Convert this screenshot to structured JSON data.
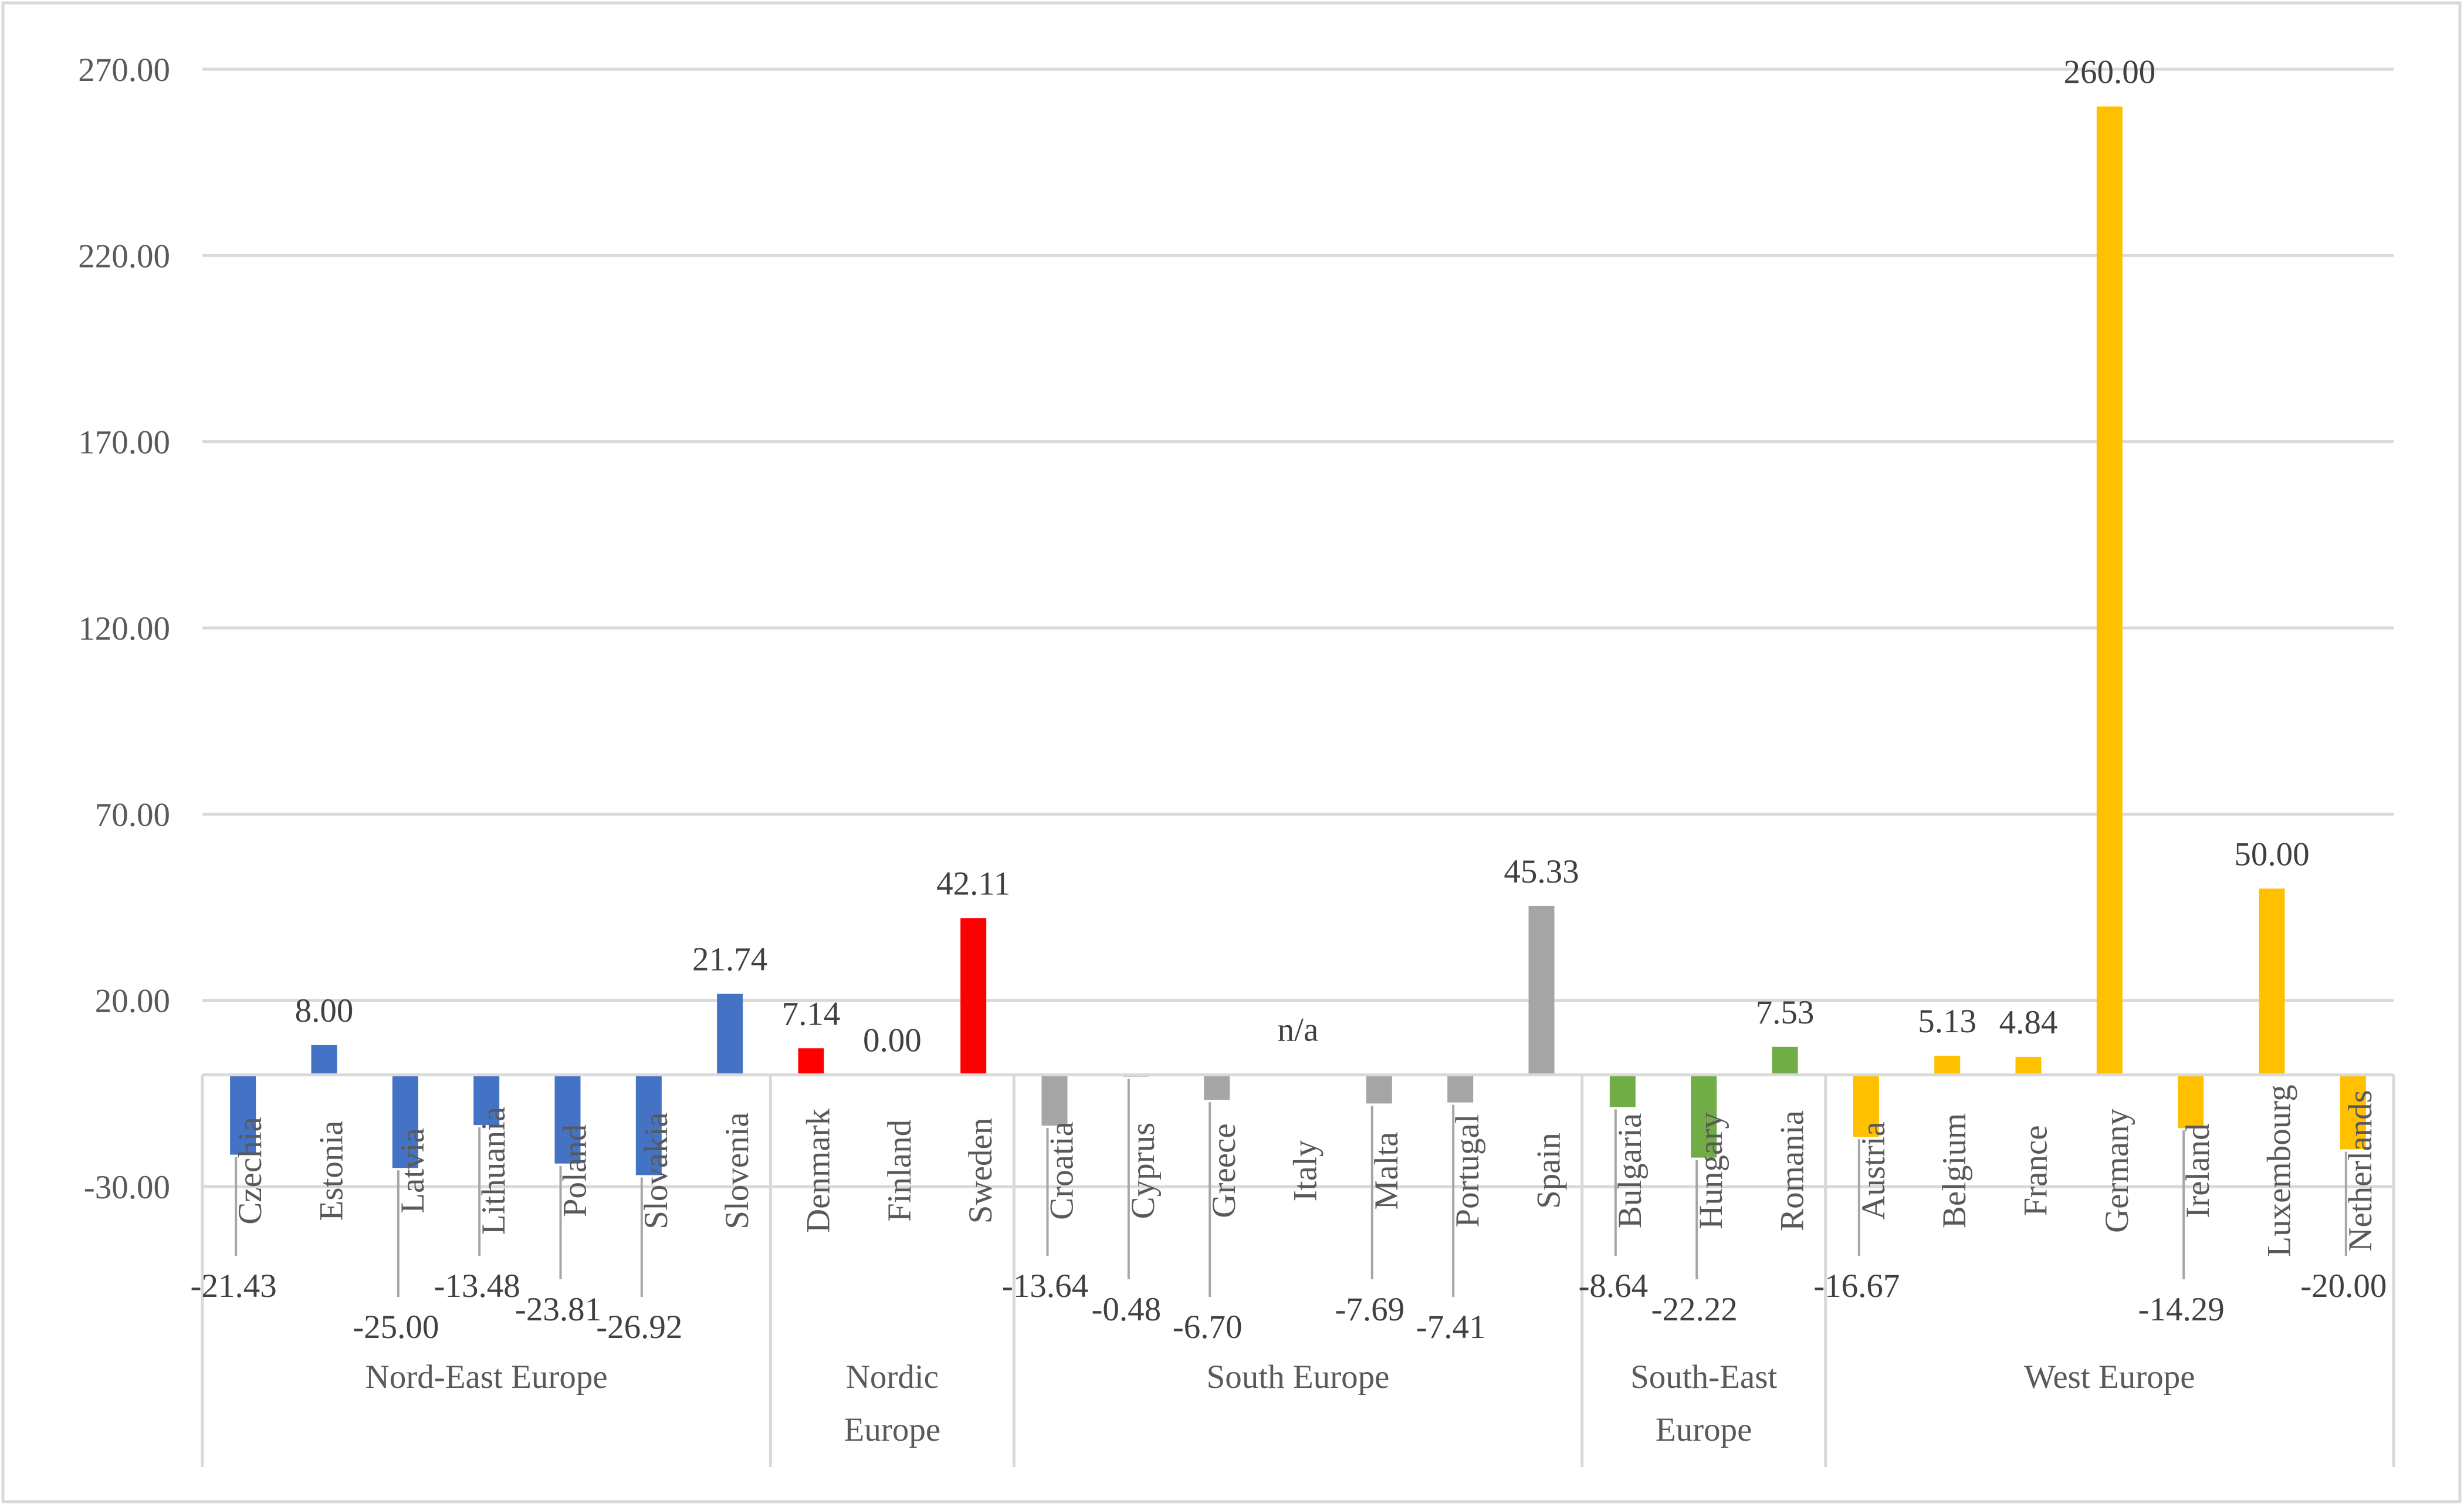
{
  "chart_data": {
    "type": "bar",
    "title": "",
    "xlabel": "",
    "ylabel": "",
    "ylim": [
      -30,
      270
    ],
    "yticks": [
      "270.00",
      "220.00",
      "170.00",
      "120.00",
      "70.00",
      "20.00",
      "-30.00"
    ],
    "gridlines": true,
    "legend": "none",
    "colors": {
      "Nord-East Europe": "#4472c4",
      "Nordic Europe": "#ff0000",
      "South Europe": "#a5a5a5",
      "South-East Europe": "#70ad47",
      "West Europe": "#ffc000"
    },
    "groups": [
      {
        "name": "Nord-East Europe",
        "label_lines": [
          "Nord-East Europe"
        ],
        "countries": [
          "Czechia",
          "Estonia",
          "Latvia",
          "Lithuania",
          "Poland",
          "Slovakia",
          "Slovenia"
        ],
        "values": [
          -21.43,
          8.0,
          -25.0,
          -13.48,
          -23.81,
          -26.92,
          21.74
        ],
        "labels": [
          "-21.43",
          "8.00",
          "-25.00",
          "-13.48",
          "-23.81",
          "-26.92",
          "21.74"
        ]
      },
      {
        "name": "Nordic Europe",
        "label_lines": [
          "Nordic",
          "Europe"
        ],
        "countries": [
          "Denmark",
          "Finland",
          "Sweden"
        ],
        "values": [
          7.14,
          0.0,
          42.11
        ],
        "labels": [
          "7.14",
          "0.00",
          "42.11"
        ]
      },
      {
        "name": "South Europe",
        "label_lines": [
          "South Europe"
        ],
        "countries": [
          "Croatia",
          "Cyprus",
          "Greece",
          "Italy",
          "Malta",
          "Portugal",
          "Spain"
        ],
        "values": [
          -13.64,
          -0.48,
          -6.7,
          null,
          -7.69,
          -7.41,
          45.33
        ],
        "labels": [
          "-13.64",
          "-0.48",
          "-6.70",
          "n/a",
          "-7.69",
          "-7.41",
          "45.33"
        ]
      },
      {
        "name": "South-East Europe",
        "label_lines": [
          "South-East",
          "Europe"
        ],
        "countries": [
          "Bulgaria",
          "Hungary",
          "Romania"
        ],
        "values": [
          -8.64,
          -22.22,
          7.53
        ],
        "labels": [
          "-8.64",
          "-22.22",
          "7.53"
        ]
      },
      {
        "name": "West Europe",
        "label_lines": [
          "West Europe"
        ],
        "countries": [
          "Austria",
          "Belgium",
          "France",
          "Germany",
          "Ireland",
          "Luxembourg",
          "Netherlands"
        ],
        "values": [
          -16.67,
          5.13,
          4.84,
          260.0,
          -14.29,
          50.0,
          -20.0
        ],
        "labels": [
          "-16.67",
          "5.13",
          "4.84",
          "260.00",
          "-14.29",
          "50.00",
          "-20.00"
        ]
      }
    ]
  }
}
